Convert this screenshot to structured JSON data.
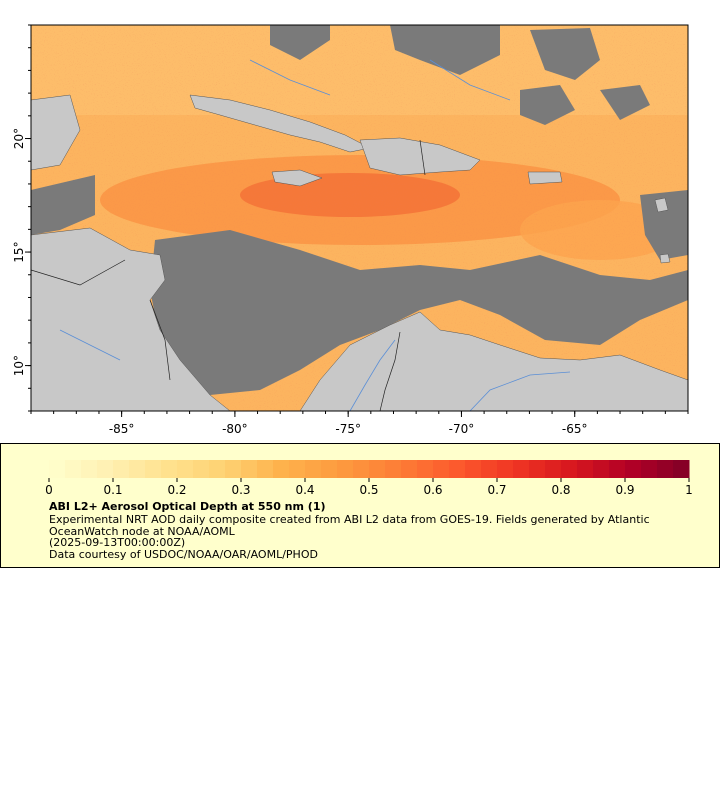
{
  "map": {
    "longitude_ticks": [
      "-85°",
      "-80°",
      "-75°",
      "-70°",
      "-65°"
    ],
    "latitude_ticks": [
      "10°",
      "15°",
      "20°"
    ],
    "extent": {
      "lon": [
        -89,
        -60
      ],
      "lat": [
        8,
        25
      ]
    }
  },
  "legend": {
    "ticks": [
      "0",
      "0.1",
      "0.2",
      "0.3",
      "0.4",
      "0.5",
      "0.6",
      "0.7",
      "0.8",
      "0.9",
      "1"
    ],
    "range": [
      0,
      1
    ],
    "colors": [
      "#ffffcc",
      "#fff0b3",
      "#ffe28f",
      "#fed273",
      "#feb24c",
      "#fd9a3f",
      "#fd7e36",
      "#fc5a2d",
      "#f03523",
      "#d7171f",
      "#b10026",
      "#800026"
    ],
    "title": "ABI L2+ Aerosol Optical Depth at 550 nm (1)",
    "description": "Experimental NRT AOD daily composite created from ABI L2 data from GOES-19. Fields generated by Atlantic OceanWatch node at NOAA/AOML",
    "date": "(2025-09-13T00:00:00Z)",
    "credit": "Data courtesy of USDOC/NOAA/OAR/AOML/PHOD"
  },
  "colors": {
    "land": "#c8c8c8",
    "no_data": "#7a7a7a",
    "aod_low": "#fec97a",
    "aod_mid": "#fb9b4a",
    "aod_high": "#d7301f",
    "legend_bg": "#ffffcc"
  }
}
